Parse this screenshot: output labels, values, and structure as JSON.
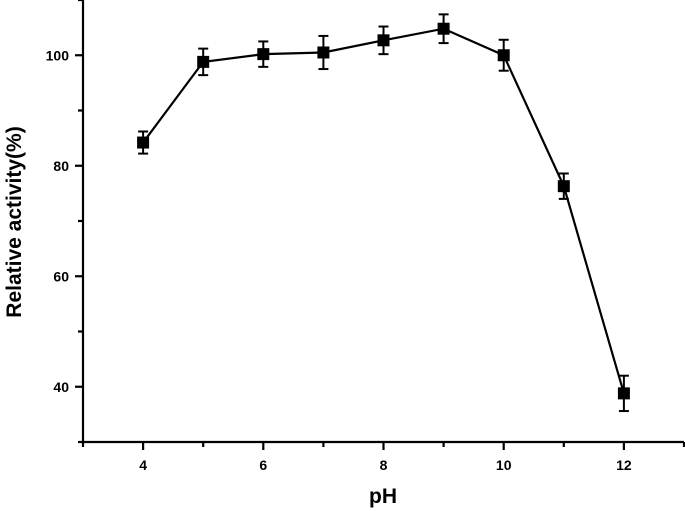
{
  "chart_data": {
    "type": "line",
    "title": "",
    "xlabel": "pH",
    "ylabel": "Relative activity(%)",
    "xlim": [
      3,
      13
    ],
    "ylim": [
      30,
      110
    ],
    "x_ticks": [
      4,
      6,
      8,
      10,
      12
    ],
    "y_ticks": [
      40,
      60,
      80,
      100
    ],
    "grid": false,
    "legend": "none",
    "marker": "square",
    "color": "#000000",
    "series": [
      {
        "x": [
          4,
          5,
          6,
          7,
          8,
          9,
          10,
          11,
          12
        ],
        "values": [
          84.2,
          98.8,
          100.2,
          100.5,
          102.7,
          104.8,
          100.0,
          76.3,
          38.8
        ],
        "error": [
          2.0,
          2.4,
          2.3,
          3.0,
          2.5,
          2.6,
          2.8,
          2.3,
          3.2
        ]
      }
    ]
  }
}
